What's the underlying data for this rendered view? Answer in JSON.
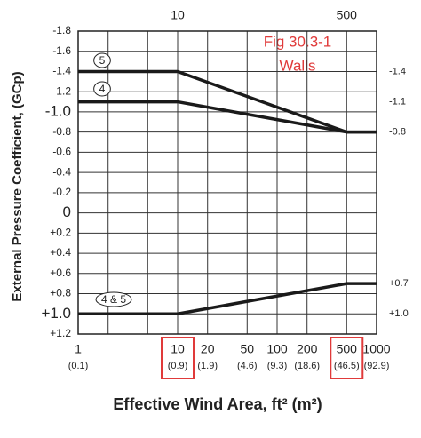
{
  "chart_data": {
    "type": "line",
    "title": "Fig 30.3-1",
    "subtitle": "Walls",
    "xlabel": "Effective Wind Area, ft² (m²)",
    "ylabel": "External Pressure Coefficient, (GCp)",
    "x_scale": "log",
    "y_inverted": true,
    "grid": true,
    "xlim": [
      1,
      1000
    ],
    "ylim": [
      -1.8,
      1.2
    ],
    "xticks": [
      1,
      10,
      20,
      50,
      100,
      200,
      500,
      1000
    ],
    "xtick_sublabels": [
      "(0.1)",
      "(0.9)",
      "(1.9)",
      "(4.6)",
      "(9.3)",
      "(18.6)",
      "(46.5)",
      "(92.9)"
    ],
    "xticks_top": [
      10,
      500
    ],
    "xminor": [
      2,
      5
    ],
    "highlight_xticks": [
      1,
      6
    ],
    "highlight_color": "#e03a3a",
    "yticks": [
      -1.8,
      -1.6,
      -1.4,
      -1.2,
      {
        "value": -1.0,
        "label": "-1.0"
      },
      -0.8,
      -0.6,
      -0.4,
      -0.2,
      0,
      {
        "value": 0.2,
        "label": "+0.2"
      },
      {
        "value": 0.4,
        "label": "+0.4"
      },
      {
        "value": 0.6,
        "label": "+0.6"
      },
      {
        "value": 0.8,
        "label": "+0.8"
      },
      {
        "value": 1.0,
        "label": "+1.0"
      },
      {
        "value": 1.2,
        "label": "+1.2"
      }
    ],
    "series": [
      {
        "name": "5",
        "color": "#1a1a1a",
        "x": [
          1,
          10,
          500,
          1000
        ],
        "values": [
          -1.4,
          -1.4,
          -0.8,
          -0.8
        ]
      },
      {
        "name": "4",
        "color": "#1a1a1a",
        "x": [
          1,
          10,
          500,
          1000
        ],
        "values": [
          -1.1,
          -1.1,
          -0.8,
          -0.8
        ]
      },
      {
        "name": "4 & 5",
        "color": "#1a1a1a",
        "x": [
          1,
          10,
          500,
          1000
        ],
        "values": [
          1.0,
          1.0,
          0.7,
          0.7
        ]
      }
    ],
    "right_labels": [
      {
        "value": -1.4,
        "label": "-1.4"
      },
      {
        "value": -1.1,
        "label": "-1.1"
      },
      {
        "value": -0.8,
        "label": "-0.8"
      },
      {
        "value": 0.7,
        "label": "+0.7"
      },
      {
        "value": 1.0,
        "label": "+1.0"
      }
    ]
  }
}
